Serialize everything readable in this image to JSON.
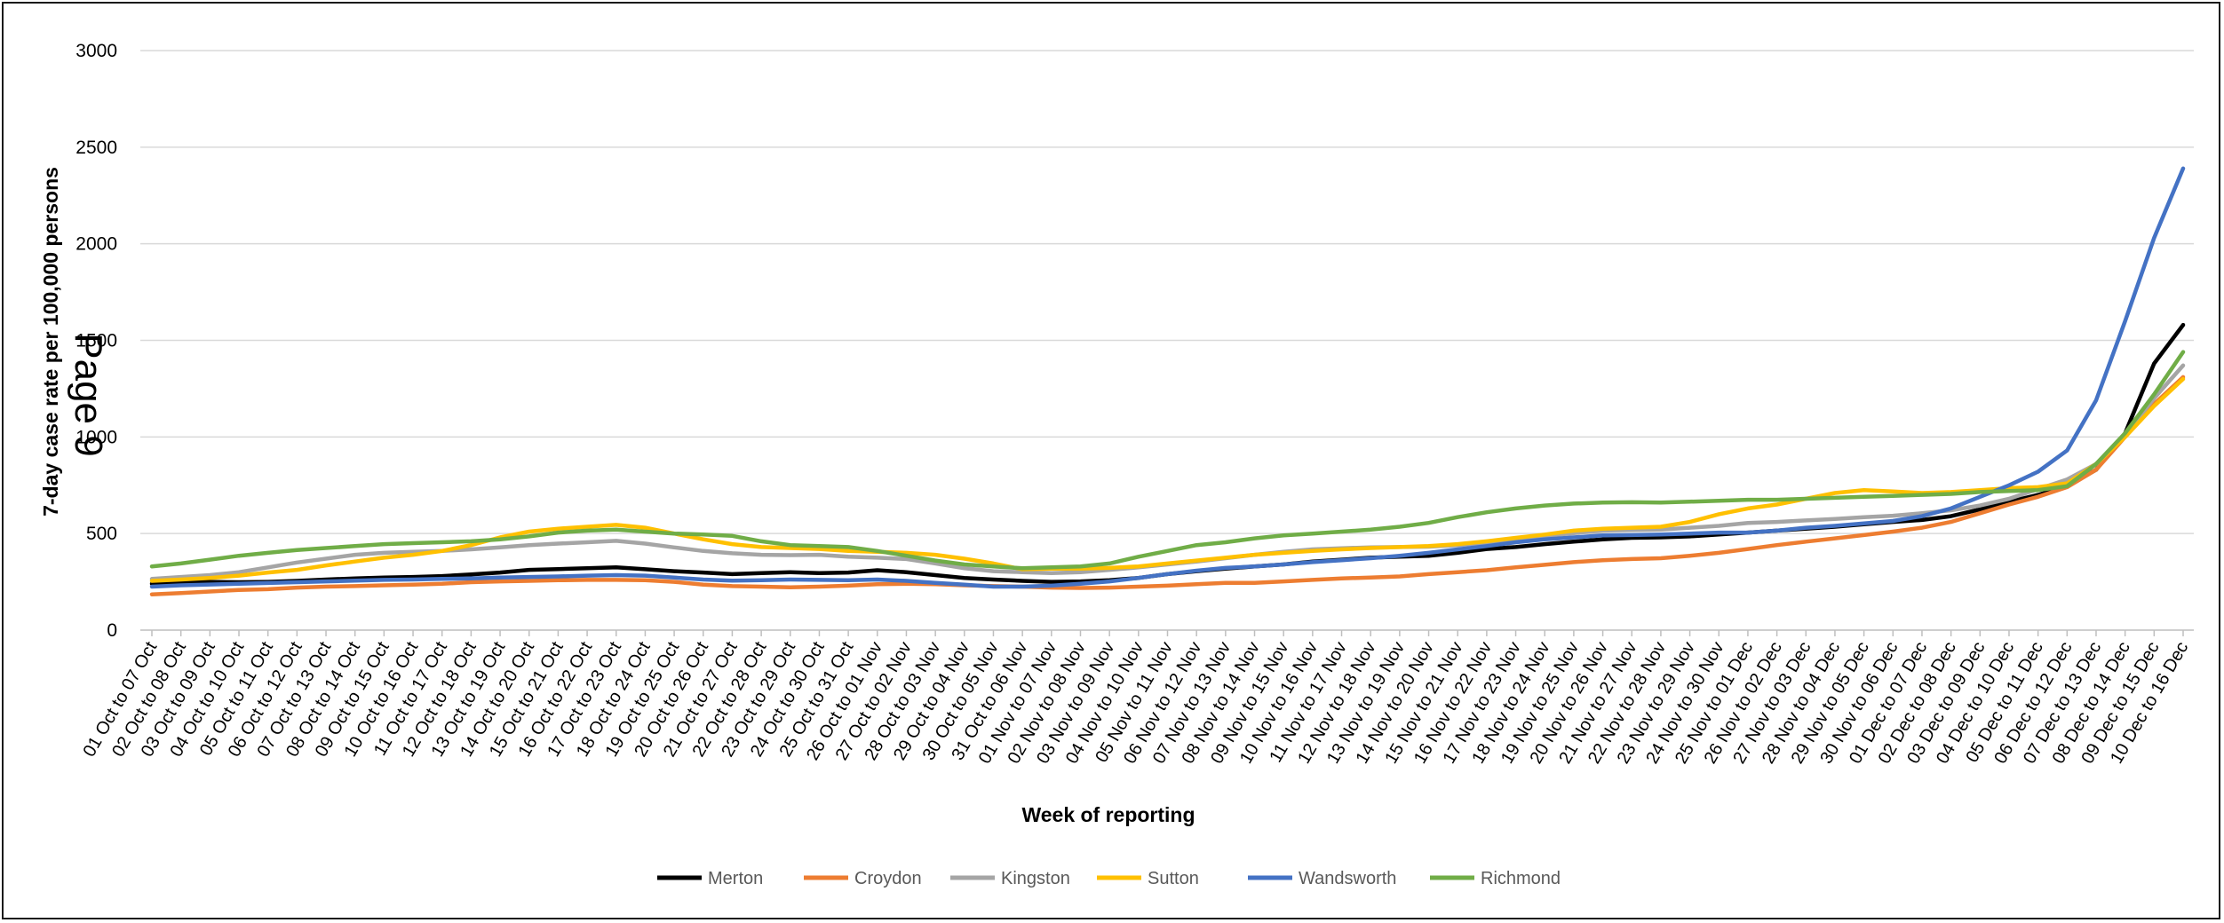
{
  "page": {
    "watermark": "Page 9"
  },
  "chart_data": {
    "type": "line",
    "xlabel": "Week of reporting",
    "ylabel": "7-day case rate per 100,000 persons",
    "ylim": [
      0,
      3000
    ],
    "yticks": [
      0,
      500,
      1000,
      1500,
      2000,
      2500,
      3000
    ],
    "grid": true,
    "legend_position": "bottom",
    "categories": [
      "01 Oct to 07 Oct",
      "02 Oct to 08 Oct",
      "03 Oct to 09 Oct",
      "04 Oct to 10 Oct",
      "05 Oct to 11 Oct",
      "06 Oct to 12 Oct",
      "07 Oct to 13 Oct",
      "08 Oct to 14 Oct",
      "09 Oct to 15 Oct",
      "10 Oct to 16 Oct",
      "11 Oct to 17 Oct",
      "12 Oct to 18 Oct",
      "13 Oct to 19 Oct",
      "14 Oct to 20 Oct",
      "15 Oct to 21 Oct",
      "16 Oct to 22 Oct",
      "17 Oct to 23 Oct",
      "18 Oct to 24 Oct",
      "19 Oct to 25 Oct",
      "20 Oct to 26 Oct",
      "21 Oct to 27 Oct",
      "22 Oct to 28 Oct",
      "23 Oct to 29 Oct",
      "24 Oct to 30 Oct",
      "25 Oct to 31 Oct",
      "26 Oct to 01 Nov",
      "27 Oct to 02 Nov",
      "28 Oct to 03 Nov",
      "29 Oct to 04 Nov",
      "30 Oct to 05 Nov",
      "31 Oct to 06 Nov",
      "01 Nov to 07 Nov",
      "02 Nov to 08 Nov",
      "03 Nov to 09 Nov",
      "04 Nov to 10 Nov",
      "05 Nov to 11 Nov",
      "06 Nov to 12 Nov",
      "07 Nov to 13 Nov",
      "08 Nov to 14 Nov",
      "09 Nov to 15 Nov",
      "10 Nov to 16 Nov",
      "11 Nov to 17 Nov",
      "12 Nov to 18 Nov",
      "13 Nov to 19 Nov",
      "14 Nov to 20 Nov",
      "15 Nov to 21 Nov",
      "16 Nov to 22 Nov",
      "17 Nov to 23 Nov",
      "18 Nov to 24 Nov",
      "19 Nov to 25 Nov",
      "20 Nov to 26 Nov",
      "21 Nov to 27 Nov",
      "22 Nov to 28 Nov",
      "23 Nov to 29 Nov",
      "24 Nov to 30 Nov",
      "25 Nov to 01 Dec",
      "26 Nov to 02 Dec",
      "27 Nov to 03 Dec",
      "28 Nov to 04 Dec",
      "29 Nov to 05 Dec",
      "30 Nov to 06 Dec",
      "01 Dec to 07 Dec",
      "02 Dec to 08 Dec",
      "03 Dec to 09 Dec",
      "04 Dec to 10 Dec",
      "05 Dec to 11 Dec",
      "06 Dec to 12 Dec",
      "07 Dec to 13 Dec",
      "08 Dec to 14 Dec",
      "09 Dec to 15 Dec",
      "10 Dec to 16 Dec"
    ],
    "series": [
      {
        "name": "Merton",
        "color": "#000000",
        "values": [
          240,
          248,
          250,
          248,
          250,
          255,
          262,
          268,
          272,
          275,
          280,
          288,
          298,
          312,
          316,
          320,
          325,
          315,
          305,
          298,
          290,
          295,
          300,
          295,
          298,
          310,
          300,
          285,
          270,
          262,
          255,
          250,
          252,
          258,
          270,
          290,
          305,
          318,
          330,
          340,
          355,
          365,
          375,
          380,
          385,
          400,
          420,
          430,
          445,
          458,
          470,
          478,
          480,
          485,
          495,
          505,
          515,
          525,
          535,
          548,
          560,
          570,
          590,
          625,
          665,
          700,
          745,
          830,
          1020,
          1380,
          1580
        ]
      },
      {
        "name": "Croydon",
        "color": "#ED7D31",
        "values": [
          185,
          192,
          200,
          208,
          212,
          220,
          225,
          228,
          232,
          235,
          240,
          248,
          252,
          255,
          258,
          260,
          260,
          258,
          250,
          235,
          228,
          225,
          222,
          225,
          230,
          238,
          240,
          238,
          232,
          228,
          225,
          220,
          218,
          220,
          225,
          230,
          238,
          245,
          245,
          252,
          260,
          268,
          272,
          278,
          290,
          300,
          310,
          325,
          338,
          352,
          362,
          368,
          372,
          385,
          400,
          420,
          440,
          458,
          475,
          492,
          510,
          530,
          560,
          605,
          650,
          690,
          740,
          830,
          1000,
          1170,
          1310
        ]
      },
      {
        "name": "Kingston",
        "color": "#A5A5A5",
        "values": [
          265,
          275,
          285,
          300,
          325,
          350,
          370,
          390,
          400,
          405,
          410,
          418,
          428,
          440,
          448,
          455,
          462,
          448,
          428,
          410,
          398,
          390,
          388,
          390,
          380,
          375,
          368,
          345,
          320,
          305,
          300,
          295,
          300,
          312,
          325,
          340,
          355,
          372,
          390,
          405,
          418,
          424,
          428,
          430,
          432,
          440,
          452,
          470,
          488,
          502,
          515,
          518,
          520,
          530,
          540,
          555,
          560,
          568,
          575,
          585,
          592,
          605,
          620,
          645,
          680,
          730,
          780,
          860,
          1010,
          1200,
          1370
        ]
      },
      {
        "name": "Sutton",
        "color": "#FFC000",
        "values": [
          255,
          262,
          270,
          282,
          298,
          312,
          335,
          355,
          375,
          390,
          410,
          440,
          480,
          510,
          525,
          535,
          545,
          530,
          500,
          470,
          445,
          430,
          425,
          420,
          410,
          405,
          400,
          390,
          370,
          345,
          315,
          318,
          318,
          322,
          330,
          345,
          360,
          375,
          390,
          400,
          410,
          418,
          425,
          430,
          435,
          445,
          460,
          478,
          495,
          515,
          525,
          530,
          535,
          560,
          600,
          630,
          650,
          680,
          710,
          725,
          718,
          710,
          715,
          725,
          735,
          740,
          760,
          860,
          1000,
          1160,
          1300
        ]
      },
      {
        "name": "Wandsworth",
        "color": "#4472C4",
        "values": [
          225,
          232,
          236,
          240,
          244,
          248,
          252,
          256,
          260,
          262,
          265,
          268,
          272,
          275,
          278,
          282,
          285,
          282,
          272,
          262,
          256,
          258,
          262,
          260,
          258,
          262,
          255,
          245,
          235,
          225,
          225,
          230,
          240,
          252,
          270,
          290,
          308,
          322,
          330,
          340,
          352,
          362,
          372,
          385,
          400,
          418,
          435,
          455,
          470,
          480,
          490,
          492,
          495,
          500,
          505,
          505,
          515,
          530,
          540,
          552,
          565,
          590,
          630,
          690,
          750,
          820,
          930,
          1190,
          1600,
          2030,
          2390
        ]
      },
      {
        "name": "Richmond",
        "color": "#70AD47",
        "values": [
          330,
          345,
          365,
          385,
          400,
          415,
          425,
          435,
          445,
          450,
          455,
          460,
          470,
          485,
          505,
          515,
          520,
          510,
          500,
          495,
          488,
          460,
          440,
          435,
          430,
          410,
          385,
          360,
          340,
          330,
          320,
          325,
          330,
          345,
          380,
          410,
          440,
          455,
          475,
          490,
          500,
          510,
          520,
          535,
          555,
          585,
          610,
          630,
          645,
          655,
          660,
          662,
          660,
          665,
          670,
          675,
          675,
          680,
          685,
          690,
          695,
          700,
          705,
          715,
          720,
          725,
          745,
          860,
          1020,
          1220,
          1440
        ]
      }
    ]
  }
}
